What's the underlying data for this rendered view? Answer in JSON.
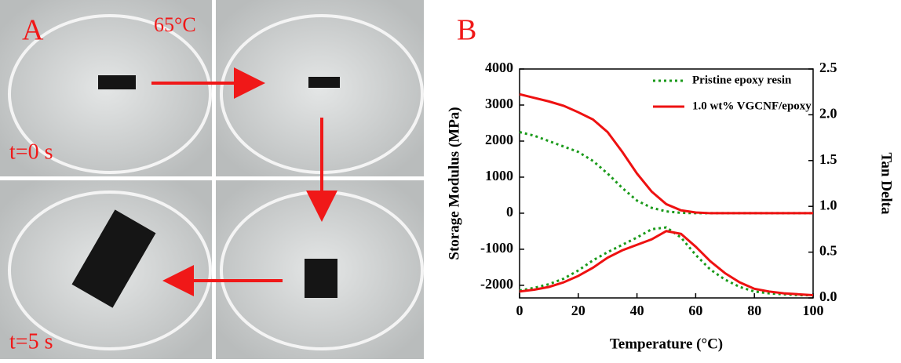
{
  "photos": {
    "label": "A",
    "temperature": "65°C",
    "captions": [
      "t=0 s",
      "t=5 s"
    ]
  },
  "chart_data": {
    "type": "line",
    "panel_label": "B",
    "xlabel": "Temperature (°C)",
    "ylabel": "Storage Modulus (MPa)",
    "y2label": "Tan Delta",
    "x": [
      0,
      5,
      10,
      15,
      20,
      25,
      30,
      35,
      40,
      45,
      50,
      55,
      60,
      65,
      70,
      75,
      80,
      85,
      90,
      95,
      100
    ],
    "xlim": [
      0,
      100
    ],
    "xticks": [
      0,
      20,
      40,
      60,
      80,
      100
    ],
    "ylim": [
      -2350,
      4000
    ],
    "yticks": [
      -2000,
      -1000,
      0,
      1000,
      2000,
      3000,
      4000
    ],
    "y2lim": [
      0,
      2.5
    ],
    "y2ticks": [
      {
        "value": 0,
        "label": "0.0"
      },
      0.5,
      {
        "value": 1,
        "label": "1.0"
      },
      1.5,
      {
        "value": 2,
        "label": "2.0"
      },
      2.5
    ],
    "series": [
      {
        "name": "Pristine epoxy resin",
        "color": "#1a9a1a",
        "dashed": true,
        "values": [
          2250,
          2150,
          2000,
          1850,
          1700,
          1450,
          1100,
          700,
          350,
          150,
          50,
          10,
          0,
          0,
          0,
          0,
          0,
          0,
          0,
          0,
          0
        ],
        "tan_delta": [
          0.08,
          0.11,
          0.15,
          0.21,
          0.3,
          0.41,
          0.5,
          0.58,
          0.66,
          0.75,
          0.77,
          0.66,
          0.47,
          0.31,
          0.2,
          0.12,
          0.07,
          0.05,
          0.04,
          0.03,
          0.03
        ]
      },
      {
        "name": "1.0 wt% VGCNF/epoxy",
        "color": "#ee1111",
        "dashed": false,
        "values": [
          3300,
          3200,
          3100,
          2980,
          2800,
          2600,
          2250,
          1700,
          1100,
          600,
          250,
          80,
          20,
          0,
          0,
          0,
          0,
          0,
          0,
          0,
          0
        ],
        "tan_delta": [
          0.07,
          0.09,
          0.12,
          0.17,
          0.24,
          0.33,
          0.44,
          0.52,
          0.58,
          0.64,
          0.73,
          0.7,
          0.56,
          0.4,
          0.27,
          0.17,
          0.1,
          0.07,
          0.05,
          0.04,
          0.03
        ]
      }
    ]
  }
}
